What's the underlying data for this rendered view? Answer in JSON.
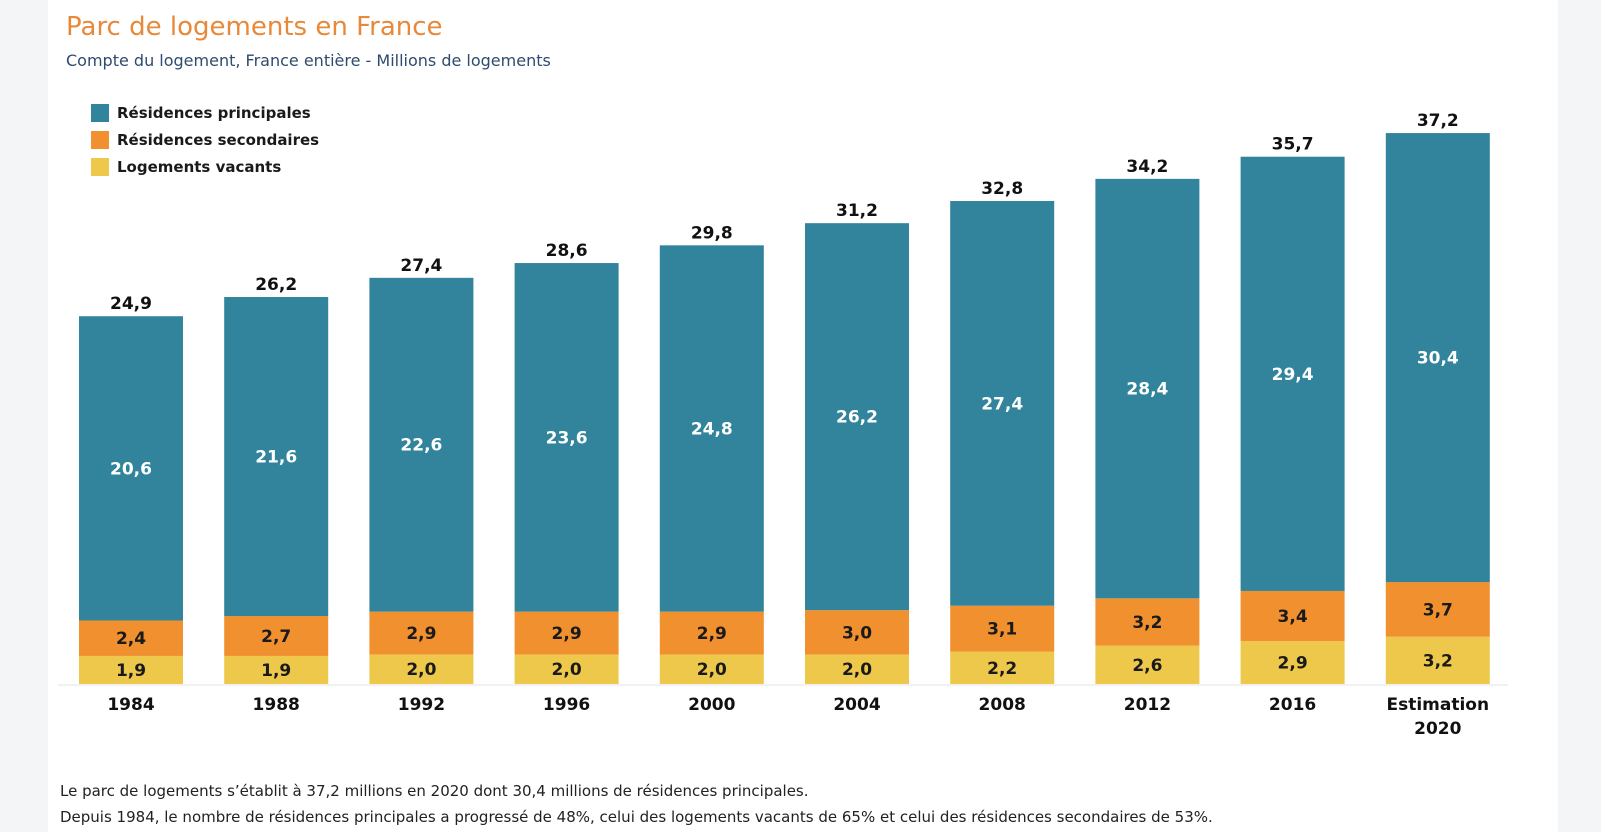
{
  "chart_data": {
    "type": "bar",
    "stacked": true,
    "title": "Parc de logements en France",
    "subtitle": "Compte du logement, France entière - Millions de logements",
    "categories": [
      "1984",
      "1988",
      "1992",
      "1996",
      "2000",
      "2004",
      "2008",
      "2012",
      "2016",
      "Estimation 2020"
    ],
    "series": [
      {
        "name": "Logements vacants",
        "color": "#eec84a",
        "values": [
          1.9,
          1.9,
          2.0,
          2.0,
          2.0,
          2.0,
          2.2,
          2.6,
          2.9,
          3.2
        ],
        "labels": [
          "1,9",
          "1,9",
          "2,0",
          "2,0",
          "2,0",
          "2,0",
          "2,2",
          "2,6",
          "2,9",
          "3,2"
        ]
      },
      {
        "name": "Résidences secondaires",
        "color": "#f0902e",
        "values": [
          2.4,
          2.7,
          2.9,
          2.9,
          2.9,
          3.0,
          3.1,
          3.2,
          3.4,
          3.7
        ],
        "labels": [
          "2,4",
          "2,7",
          "2,9",
          "2,9",
          "2,9",
          "3,0",
          "3,1",
          "3,2",
          "3,4",
          "3,7"
        ]
      },
      {
        "name": "Résidences principales",
        "color": "#31849b",
        "values": [
          20.6,
          21.6,
          22.6,
          23.6,
          24.8,
          26.2,
          27.4,
          28.4,
          29.4,
          30.4
        ],
        "labels": [
          "20,6",
          "21,6",
          "22,6",
          "23,6",
          "24,8",
          "26,2",
          "27,4",
          "28,4",
          "29,4",
          "30,4"
        ]
      }
    ],
    "totals": [
      24.9,
      26.2,
      27.4,
      28.6,
      29.8,
      31.2,
      32.8,
      34.2,
      35.7,
      37.2
    ],
    "total_labels": [
      "24,9",
      "26,2",
      "27,4",
      "28,6",
      "29,8",
      "31,2",
      "32,8",
      "34,2",
      "35,7",
      "37,2"
    ],
    "legend": {
      "position": "top-left",
      "items": [
        {
          "label": "Résidences principales",
          "color": "#31849b"
        },
        {
          "label": "Résidences secondaires",
          "color": "#f0902e"
        },
        {
          "label": "Logements vacants",
          "color": "#eec84a"
        }
      ]
    },
    "ylim": [
      0,
      37.2
    ],
    "grid": false
  },
  "footer": {
    "line1": "Le parc de logements s’établit à 37,2 millions en 2020 dont 30,4 millions de résidences principales.",
    "line2": "Depuis 1984, le nombre de résidences principales a progressé de 48%, celui des logements vacants de 65% et celui des résidences secondaires de 53%."
  }
}
